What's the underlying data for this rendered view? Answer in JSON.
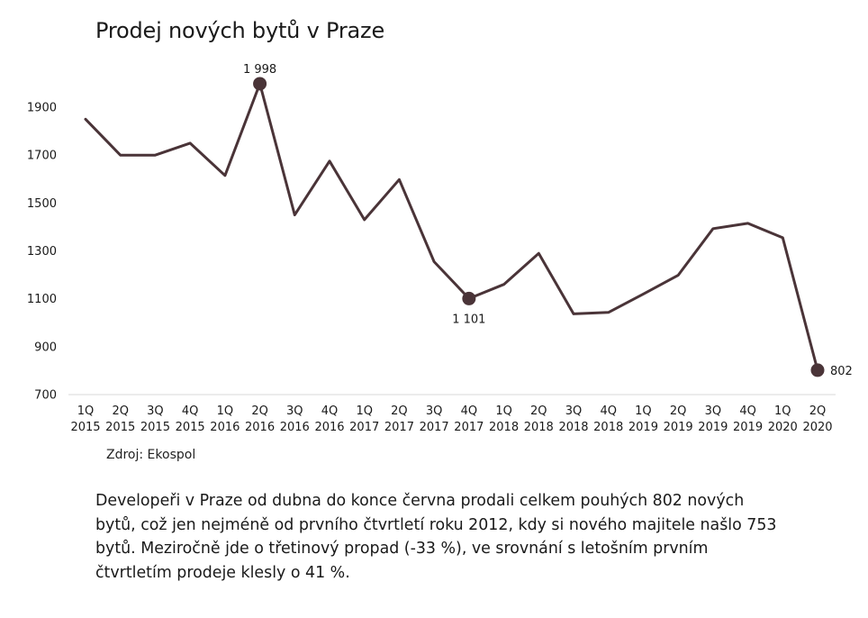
{
  "chart_data": {
    "type": "line",
    "title": "Prodej nových bytů v Praze",
    "xlabel": "",
    "ylabel": "",
    "categories": [
      [
        "1Q",
        "2015"
      ],
      [
        "2Q",
        "2015"
      ],
      [
        "3Q",
        "2015"
      ],
      [
        "4Q",
        "2015"
      ],
      [
        "1Q",
        "2016"
      ],
      [
        "2Q",
        "2016"
      ],
      [
        "3Q",
        "2016"
      ],
      [
        "4Q",
        "2016"
      ],
      [
        "1Q",
        "2017"
      ],
      [
        "2Q",
        "2017"
      ],
      [
        "3Q",
        "2017"
      ],
      [
        "4Q",
        "2017"
      ],
      [
        "1Q",
        "2018"
      ],
      [
        "2Q",
        "2018"
      ],
      [
        "3Q",
        "2018"
      ],
      [
        "4Q",
        "2018"
      ],
      [
        "1Q",
        "2019"
      ],
      [
        "2Q",
        "2019"
      ],
      [
        "3Q",
        "2019"
      ],
      [
        "4Q",
        "2019"
      ],
      [
        "1Q",
        "2020"
      ],
      [
        "2Q",
        "2020"
      ]
    ],
    "series": [
      {
        "values": [
          1850,
          1700,
          1700,
          1750,
          1615,
          1998,
          1450,
          1675,
          1430,
          1598,
          1255,
          1101,
          1160,
          1290,
          1037,
          1043,
          1120,
          1198,
          1393,
          1415,
          1355,
          802
        ],
        "color": "#4a3438"
      }
    ],
    "yticks": [
      700,
      900,
      1100,
      1300,
      1500,
      1700,
      1900
    ],
    "ylim": [
      700,
      2000
    ],
    "grid": false,
    "legend": "none",
    "highlighted_points": [
      {
        "index": 5,
        "label": "1 998",
        "position": "above"
      },
      {
        "index": 11,
        "label": "1 101",
        "position": "below"
      },
      {
        "index": 21,
        "label": "802",
        "position": "right"
      }
    ]
  },
  "source": "Zdroj: Ekospol",
  "caption": "Developeři v Praze od dubna do konce června prodali celkem pouhých 802 nových bytů, což jen nejméně od prvního čtvrtletí roku 2012, kdy si nového majitele našlo 753 bytů. Meziročně jde o třetinový propad (-33 %), ve srovnání s letošním prvním čtvrtletím prodeje klesly o 41 %."
}
